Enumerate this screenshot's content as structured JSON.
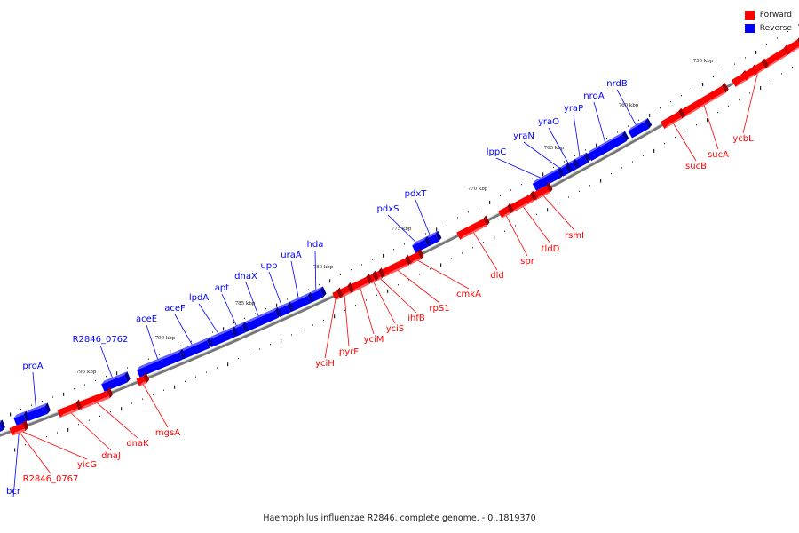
{
  "legend": [
    {
      "label": "Forward",
      "color": "#ff0000"
    },
    {
      "label": "Reverse",
      "color": "#0000ff"
    }
  ],
  "caption": "Haemophilus influenzae R2846, complete genome. - 0..1819370",
  "colors": {
    "forward": "#ff0000",
    "reverse": "#0000ff",
    "backbone": "#808080"
  },
  "ticks": [
    "755 kbp",
    "760 kbp",
    "765 kbp",
    "770 kbp",
    "775 kbp",
    "780 kbp",
    "785 kbp",
    "790 kbp",
    "795 kbp"
  ],
  "reverse_genes": [
    "nrdB",
    "nrdA",
    "yraP",
    "yraO",
    "yraN",
    "lppC",
    "pdxT",
    "pdxS",
    "hda",
    "uraA",
    "upp",
    "dnaX",
    "apt",
    "lpdA",
    "aceF",
    "aceE",
    "R2846_0762",
    "proA",
    "bcr"
  ],
  "forward_genes": [
    "ycbL",
    "sucA",
    "sucB",
    "rsmI",
    "tldD",
    "spr",
    "dld",
    "cmkA",
    "rpS1",
    "ihfB",
    "yciS",
    "yciM",
    "pyrF",
    "yciH",
    "mgsA",
    "dnaK",
    "dnaJ",
    "yicG",
    "R2846_0767"
  ]
}
